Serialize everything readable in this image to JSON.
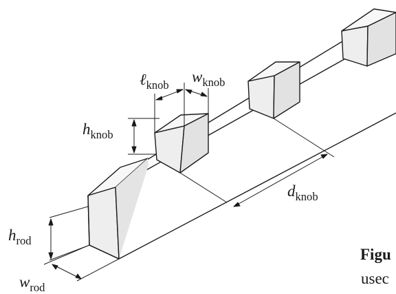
{
  "labels": {
    "h_rod": {
      "sym": "h",
      "sub": "rod"
    },
    "w_rod": {
      "sym": "w",
      "sub": "rod"
    },
    "h_knob": {
      "sym": "h",
      "sub": "knob"
    },
    "l_knob": {
      "sym": "ℓ",
      "sub": "knob"
    },
    "w_knob": {
      "sym": "w",
      "sub": "knob"
    },
    "d_knob": {
      "sym": "d",
      "sub": "knob"
    }
  },
  "caption": {
    "line1": "Figu",
    "line2": "usec"
  },
  "colors": {
    "stroke": "#1a1a1a",
    "face_top": "#f7f7f7",
    "face_front": "#eeeeee",
    "face_side": "#e2e2e2"
  }
}
